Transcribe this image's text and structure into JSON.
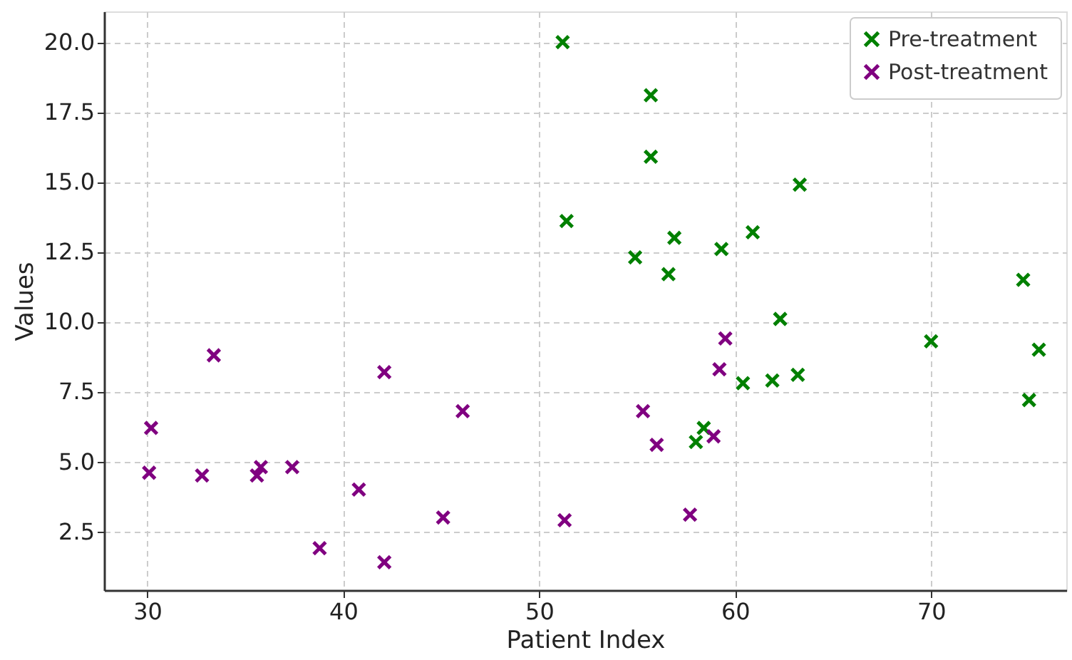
{
  "chart_data": {
    "type": "scatter",
    "xlabel": "Patient Index",
    "ylabel": "Values",
    "xlim": [
      27.8,
      76.9
    ],
    "ylim": [
      0.4,
      21.1
    ],
    "xticks": [
      30,
      40,
      50,
      60,
      70
    ],
    "yticks": [
      {
        "value": 2.5,
        "label": "2.5"
      },
      {
        "value": 5,
        "label": "5.0"
      },
      {
        "value": 7.5,
        "label": "7.5"
      },
      {
        "value": 10,
        "label": "10.0"
      },
      {
        "value": 12.5,
        "label": "12.5"
      },
      {
        "value": 15,
        "label": "15.0"
      },
      {
        "value": 17.5,
        "label": "17.5"
      },
      {
        "value": 20,
        "label": "20.0"
      }
    ],
    "grid": true,
    "legend": "top right",
    "marker": "cross",
    "series": [
      {
        "name": "Pre-treatment",
        "color": "#008000",
        "x": [
          51.2,
          55.7,
          55.7,
          51.4,
          63.3,
          54.9,
          56.9,
          56.6,
          59.3,
          60.9,
          62.3,
          70.0,
          74.7,
          75.5,
          75.0,
          60.4,
          61.9,
          63.2,
          58.4,
          58.0
        ],
        "values": [
          20.0,
          18.1,
          15.9,
          13.6,
          14.9,
          12.3,
          13.0,
          11.7,
          12.6,
          13.2,
          10.1,
          9.3,
          11.5,
          9.0,
          7.2,
          7.8,
          7.9,
          8.1,
          6.2,
          5.7
        ]
      },
      {
        "name": "Post-treatment",
        "color": "#800080",
        "x": [
          30.2,
          30.1,
          33.4,
          32.8,
          35.6,
          35.8,
          37.4,
          38.8,
          40.8,
          42.1,
          42.1,
          45.1,
          46.1,
          51.3,
          55.3,
          56.0,
          59.5,
          59.2,
          58.9,
          57.7
        ],
        "values": [
          6.2,
          4.6,
          8.8,
          4.5,
          4.5,
          4.8,
          4.8,
          1.9,
          4.0,
          8.2,
          1.4,
          3.0,
          6.8,
          2.9,
          6.8,
          5.6,
          9.4,
          8.3,
          5.9,
          3.1
        ]
      }
    ]
  }
}
